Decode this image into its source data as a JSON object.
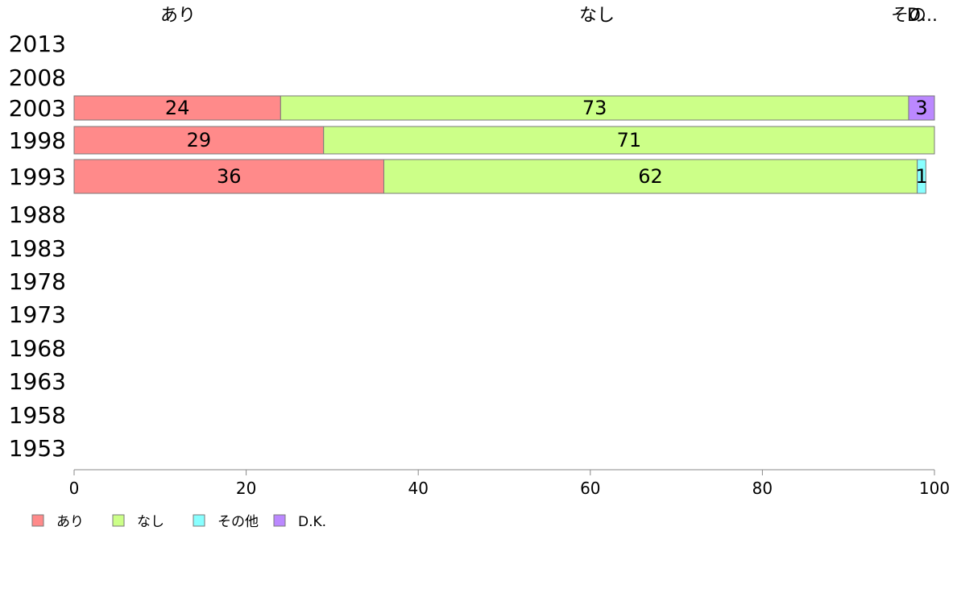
{
  "chart_data": {
    "type": "bar",
    "orientation": "horizontal",
    "stacked": true,
    "xlim": [
      0,
      100
    ],
    "x_ticks": [
      0,
      20,
      40,
      60,
      80,
      100
    ],
    "grid": false,
    "legend_position": "bottom-left",
    "categories": [
      "2013",
      "2008",
      "2003",
      "1998",
      "1993",
      "1988",
      "1983",
      "1978",
      "1973",
      "1968",
      "1963",
      "1958",
      "1953"
    ],
    "series": [
      {
        "name": "あり",
        "color": "#ff8a8a",
        "values": [
          null,
          null,
          24,
          29,
          36,
          null,
          null,
          null,
          null,
          null,
          null,
          null,
          null
        ]
      },
      {
        "name": "なし",
        "color": "#ccff88",
        "values": [
          null,
          null,
          73,
          71,
          62,
          null,
          null,
          null,
          null,
          null,
          null,
          null,
          null
        ]
      },
      {
        "name": "その他",
        "color": "#88ffff",
        "values": [
          null,
          null,
          0,
          0,
          1,
          null,
          null,
          null,
          null,
          null,
          null,
          null,
          null
        ]
      },
      {
        "name": "D.K.",
        "color": "#bb88ff",
        "values": [
          null,
          null,
          3,
          0,
          0,
          null,
          null,
          null,
          null,
          null,
          null,
          null,
          null
        ]
      }
    ],
    "top_labels": [
      "あり",
      "なし",
      "その他",
      "D.K."
    ],
    "top_labels_rendered": [
      "あり",
      "なし",
      "その",
      "D..."
    ]
  }
}
